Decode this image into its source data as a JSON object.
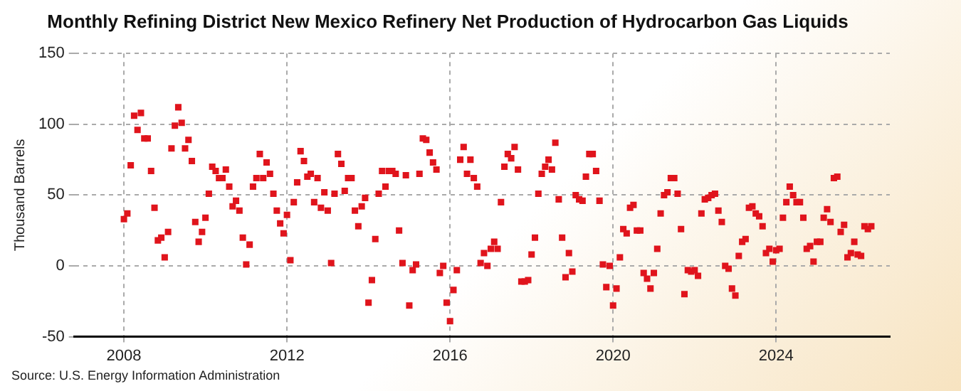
{
  "chart_data": {
    "type": "scatter",
    "title": "Monthly Refining District New Mexico Refinery Net Production of Hydrocarbon Gas Liquids",
    "ylabel": "Thousand Barrels",
    "annotations": [
      "Source: U.S. Energy Information Administration"
    ],
    "x": [
      "2008-01",
      "2008-02",
      "2008-03",
      "2008-04",
      "2008-05",
      "2008-06",
      "2008-07",
      "2008-08",
      "2008-09",
      "2008-10",
      "2008-11",
      "2008-12",
      "2009-01",
      "2009-02",
      "2009-03",
      "2009-04",
      "2009-05",
      "2009-06",
      "2009-07",
      "2009-08",
      "2009-09",
      "2009-10",
      "2009-11",
      "2009-12",
      "2010-01",
      "2010-02",
      "2010-03",
      "2010-04",
      "2010-05",
      "2010-06",
      "2010-07",
      "2010-08",
      "2010-09",
      "2010-10",
      "2010-11",
      "2010-12",
      "2011-01",
      "2011-02",
      "2011-03",
      "2011-04",
      "2011-05",
      "2011-06",
      "2011-07",
      "2011-08",
      "2011-09",
      "2011-10",
      "2011-11",
      "2011-12",
      "2012-01",
      "2012-02",
      "2012-03",
      "2012-04",
      "2012-05",
      "2012-06",
      "2012-07",
      "2012-08",
      "2012-09",
      "2012-10",
      "2012-11",
      "2012-12",
      "2013-01",
      "2013-02",
      "2013-03",
      "2013-04",
      "2013-05",
      "2013-06",
      "2013-07",
      "2013-08",
      "2013-09",
      "2013-10",
      "2013-11",
      "2013-12",
      "2014-01",
      "2014-02",
      "2014-03",
      "2014-04",
      "2014-05",
      "2014-06",
      "2014-07",
      "2014-08",
      "2014-09",
      "2014-10",
      "2014-11",
      "2014-12",
      "2015-01",
      "2015-02",
      "2015-03",
      "2015-04",
      "2015-05",
      "2015-06",
      "2015-07",
      "2015-08",
      "2015-09",
      "2015-10",
      "2015-11",
      "2015-12",
      "2016-01",
      "2016-02",
      "2016-03",
      "2016-04",
      "2016-05",
      "2016-06",
      "2016-07",
      "2016-08",
      "2016-09",
      "2016-10",
      "2016-11",
      "2016-12",
      "2017-01",
      "2017-02",
      "2017-03",
      "2017-04",
      "2017-05",
      "2017-06",
      "2017-07",
      "2017-08",
      "2017-09",
      "2017-10",
      "2017-11",
      "2017-12",
      "2018-01",
      "2018-02",
      "2018-03",
      "2018-04",
      "2018-05",
      "2018-06",
      "2018-07",
      "2018-08",
      "2018-09",
      "2018-10",
      "2018-11",
      "2018-12",
      "2019-01",
      "2019-02",
      "2019-03",
      "2019-04",
      "2019-05",
      "2019-06",
      "2019-07",
      "2019-08",
      "2019-09",
      "2019-10",
      "2019-11",
      "2019-12",
      "2020-01",
      "2020-02",
      "2020-03",
      "2020-04",
      "2020-05",
      "2020-06",
      "2020-07",
      "2020-08",
      "2020-09",
      "2020-10",
      "2020-11",
      "2020-12",
      "2021-01",
      "2021-02",
      "2021-03",
      "2021-04",
      "2021-05",
      "2021-06",
      "2021-07",
      "2021-08",
      "2021-09",
      "2021-10",
      "2021-11",
      "2021-12",
      "2022-01",
      "2022-02",
      "2022-03",
      "2022-04",
      "2022-05",
      "2022-06",
      "2022-07",
      "2022-08",
      "2022-09",
      "2022-10",
      "2022-11",
      "2022-12",
      "2023-01",
      "2023-02",
      "2023-03",
      "2023-04",
      "2023-05",
      "2023-06",
      "2023-07",
      "2023-08",
      "2023-09",
      "2023-10",
      "2023-11",
      "2023-12",
      "2024-01",
      "2024-02",
      "2024-03",
      "2024-04",
      "2024-05",
      "2024-06",
      "2024-07",
      "2024-08",
      "2024-09",
      "2024-10",
      "2024-11",
      "2024-12",
      "2025-01",
      "2025-02",
      "2025-03",
      "2025-04",
      "2025-05",
      "2025-06",
      "2025-07",
      "2025-08",
      "2025-09",
      "2025-10",
      "2025-11",
      "2025-12",
      "2026-01",
      "2026-02",
      "2026-03",
      "2026-04",
      "2026-05"
    ],
    "series": [
      {
        "color": "#e0141c",
        "values": [
          33,
          37,
          71,
          106,
          96,
          108,
          90,
          90,
          67,
          41,
          18,
          20,
          6,
          24,
          83,
          99,
          112,
          101,
          83,
          89,
          74,
          31,
          17,
          24,
          34,
          51,
          70,
          67,
          62,
          62,
          68,
          56,
          42,
          46,
          39,
          20,
          1,
          15,
          56,
          62,
          79,
          62,
          73,
          65,
          51,
          39,
          30,
          23,
          36,
          4,
          45,
          59,
          81,
          74,
          63,
          65,
          45,
          62,
          41,
          52,
          39,
          2,
          51,
          79,
          72,
          53,
          62,
          62,
          39,
          28,
          42,
          48,
          -26,
          -10,
          19,
          51,
          67,
          56,
          67,
          67,
          65,
          25,
          2,
          64,
          -28,
          -3,
          1,
          65,
          90,
          89,
          80,
          73,
          68,
          -5,
          0,
          -26,
          -39,
          -17,
          -3,
          75,
          84,
          65,
          75,
          62,
          56,
          2,
          9,
          0,
          12,
          17,
          12,
          45,
          70,
          79,
          76,
          84,
          68,
          -11,
          -11,
          -10,
          8,
          20,
          51,
          65,
          70,
          75,
          68,
          87,
          47,
          20,
          -8,
          9,
          -4,
          50,
          47,
          46,
          63,
          79,
          79,
          67,
          46,
          1,
          -15,
          0,
          -28,
          -16,
          6,
          26,
          23,
          41,
          43,
          25,
          25,
          -5,
          -9,
          -16,
          -5,
          12,
          37,
          50,
          52,
          62,
          62,
          51,
          26,
          -20,
          -3,
          -4,
          -3,
          -7,
          37,
          47,
          48,
          50,
          51,
          39,
          31,
          0,
          -2,
          -16,
          -21,
          7,
          17,
          19,
          41,
          42,
          37,
          35,
          28,
          9,
          12,
          3,
          11,
          12,
          34,
          45,
          56,
          50,
          45,
          45,
          34,
          12,
          14,
          3,
          17,
          17,
          34,
          40,
          31,
          62,
          63,
          24,
          29,
          6,
          9,
          17,
          8,
          7,
          28,
          26,
          28
        ]
      }
    ],
    "xlim": [
      "2006-10-15",
      "2026-10-15"
    ],
    "xticks": [
      "2008",
      "2012",
      "2016",
      "2020",
      "2024"
    ],
    "ylim": [
      -50,
      150
    ],
    "yticks": [
      -50,
      0,
      50,
      100,
      150
    ],
    "grid": true,
    "marker": "square"
  }
}
